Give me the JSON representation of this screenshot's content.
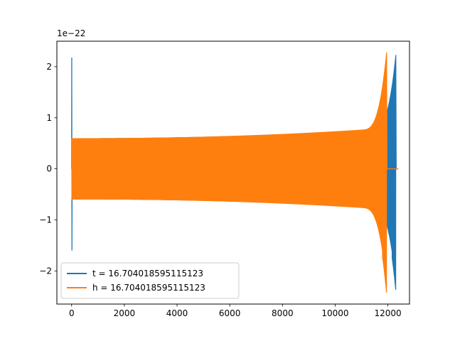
{
  "chart_data": {
    "type": "line",
    "title": "",
    "xlabel": "",
    "ylabel": "",
    "offset_text": "1e−22",
    "xlim": [
      -560,
      12820
    ],
    "ylim": [
      -2.65,
      2.5
    ],
    "x_ticks": [
      0,
      2000,
      4000,
      6000,
      8000,
      10000,
      12000
    ],
    "x_tick_labels": [
      "0",
      "2000",
      "4000",
      "6000",
      "8000",
      "10000",
      "12000"
    ],
    "y_ticks": [
      -2,
      -1,
      0,
      1,
      2
    ],
    "y_tick_labels": [
      "−2",
      "−1",
      "0",
      "1",
      "2"
    ],
    "grid": false,
    "legend_position": "lower-left",
    "series": [
      {
        "name": "t = 16.704018595115123",
        "color": "#1f77b4",
        "x_start": 0,
        "x_end": 12300,
        "initial_spike": [
          2.18,
          -1.6
        ],
        "envelope_start": 0.6,
        "envelope_mid": 0.8,
        "peak_x": 12290,
        "peak_values": [
          2.28,
          -2.45
        ],
        "ringdown_end": 12400
      },
      {
        "name": "h = 16.704018595115123",
        "color": "#ff7f0e",
        "x_start": 0,
        "x_end": 11950,
        "initial_spike": [
          0.6,
          -0.6
        ],
        "envelope_start": 0.6,
        "envelope_mid": 0.8,
        "peak_x": 11930,
        "peak_values": [
          2.28,
          -2.45
        ],
        "ringdown_end": 12400
      }
    ]
  }
}
